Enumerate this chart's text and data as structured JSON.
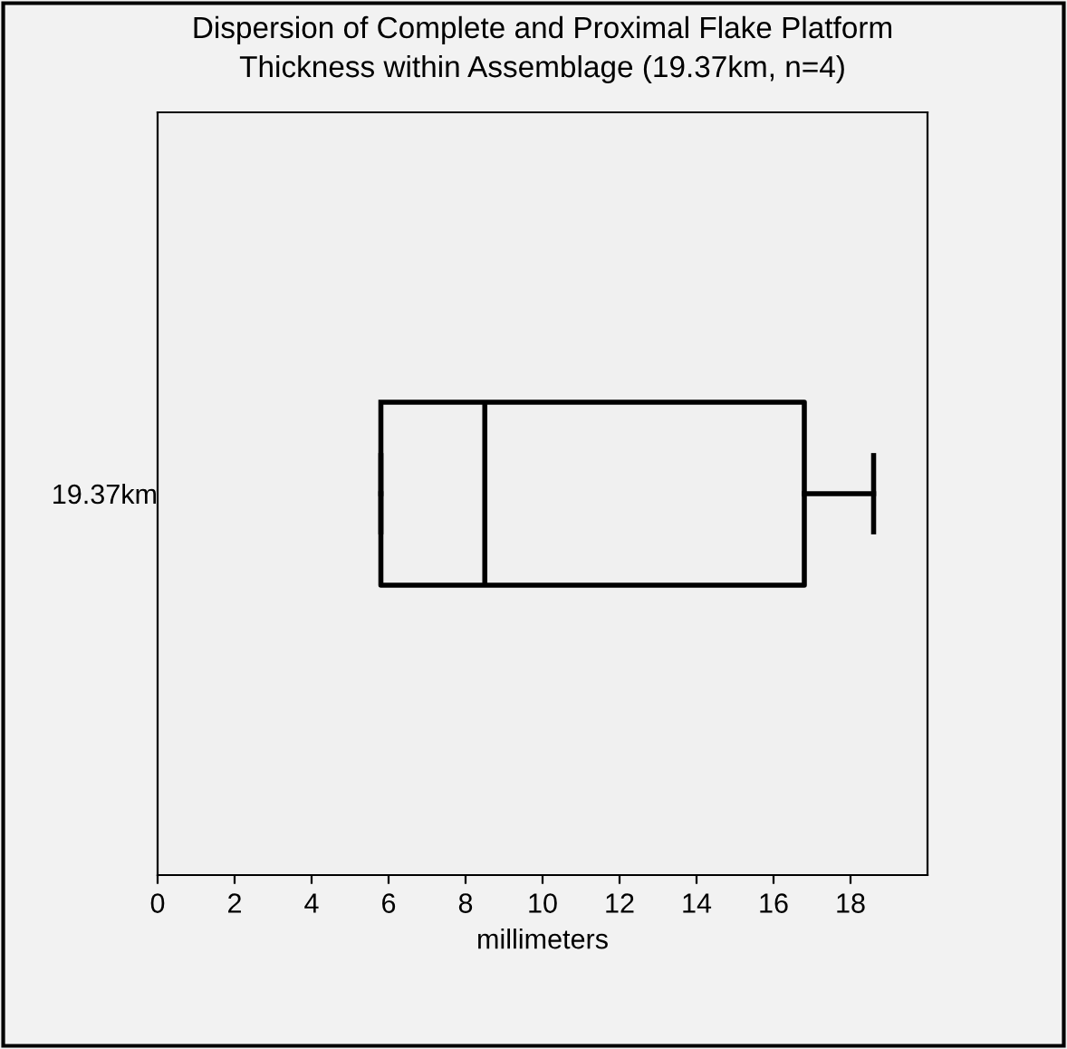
{
  "chart_data": {
    "type": "box",
    "title": "Dispersion of Complete and Proximal Flake Platform\nThickness within Assemblage (19.37km, n=4)",
    "xlabel": "millimeters",
    "orientation": "horizontal",
    "categories": [
      "19.37km"
    ],
    "boxes": [
      {
        "low": 5.8,
        "q1": 5.8,
        "median": 8.5,
        "q3": 16.8,
        "high": 18.6
      }
    ],
    "xlim": [
      0,
      20
    ],
    "xticks": [
      0,
      2,
      4,
      6,
      8,
      10,
      12,
      14,
      16,
      18
    ],
    "grid": false
  }
}
